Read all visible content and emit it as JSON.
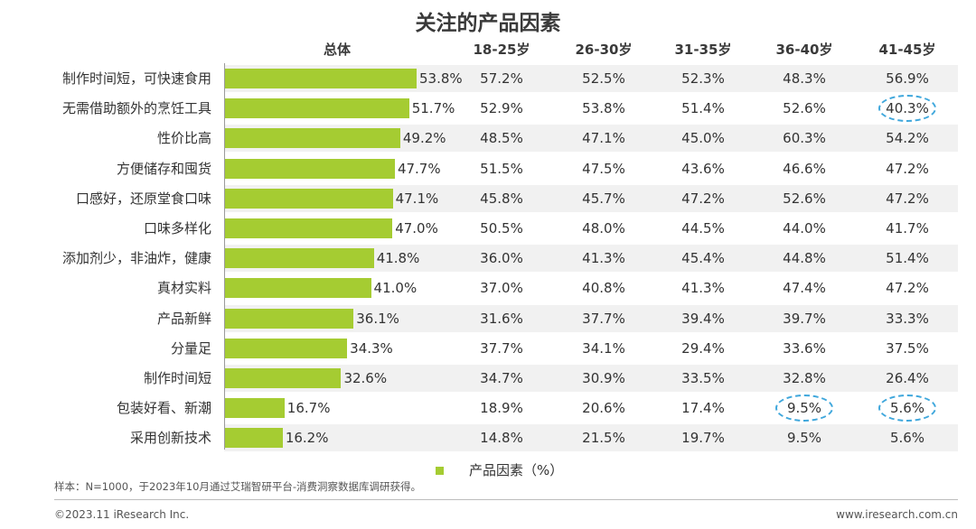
{
  "chart_data": {
    "type": "table",
    "title": "关注的产品因素",
    "columns": [
      "总体",
      "18-25岁",
      "26-30岁",
      "31-35岁",
      "36-40岁",
      "41-45岁"
    ],
    "categories": [
      "制作时间短，可快速食用",
      "无需借助额外的烹饪工具",
      "性价比高",
      "方便储存和囤货",
      "口感好，还原堂食口味",
      "口味多样化",
      "添加剂少，非油炸，健康",
      "真材实料",
      "产品新鲜",
      "分量足",
      "制作时间短",
      "包装好看、新潮",
      "采用创新技术"
    ],
    "series": [
      {
        "name": "总体",
        "values": [
          53.8,
          51.7,
          49.2,
          47.7,
          47.1,
          47.0,
          41.8,
          41.0,
          36.1,
          34.3,
          32.6,
          16.7,
          16.2
        ],
        "labels": [
          "53.8%",
          "51.7%",
          "49.2%",
          "47.7%",
          "47.1%",
          "47.0%",
          "41.8%",
          "41.0%",
          "36.1%",
          "34.3%",
          "32.6%",
          "16.7%",
          "16.2%"
        ]
      },
      {
        "name": "18-25岁",
        "values": [
          "57.2%",
          "52.9%",
          "48.5%",
          "51.5%",
          "45.8%",
          "50.5%",
          "36.0%",
          "37.0%",
          "31.6%",
          "37.7%",
          "34.7%",
          "18.9%",
          "14.8%"
        ]
      },
      {
        "name": "26-30岁",
        "values": [
          "52.5%",
          "53.8%",
          "47.1%",
          "47.5%",
          "45.7%",
          "48.0%",
          "41.3%",
          "40.8%",
          "37.7%",
          "34.1%",
          "30.9%",
          "20.6%",
          "21.5%"
        ]
      },
      {
        "name": "31-35岁",
        "values": [
          "52.3%",
          "51.4%",
          "45.0%",
          "43.6%",
          "47.2%",
          "44.5%",
          "45.4%",
          "41.3%",
          "39.4%",
          "29.4%",
          "33.5%",
          "17.4%",
          "19.7%"
        ]
      },
      {
        "name": "36-40岁",
        "values": [
          "48.3%",
          "52.6%",
          "60.3%",
          "46.6%",
          "52.6%",
          "44.0%",
          "44.8%",
          "47.4%",
          "39.7%",
          "33.6%",
          "32.8%",
          "9.5%",
          "9.5%"
        ]
      },
      {
        "name": "41-45岁",
        "values": [
          "56.9%",
          "40.3%",
          "54.2%",
          "47.2%",
          "47.2%",
          "41.7%",
          "51.4%",
          "47.2%",
          "33.3%",
          "37.5%",
          "26.4%",
          "5.6%",
          "5.6%"
        ]
      }
    ],
    "highlights": [
      {
        "column": 5,
        "row": 1
      },
      {
        "column": 4,
        "row": 11
      },
      {
        "column": 5,
        "row": 11
      }
    ],
    "legend": "产品因素（%）",
    "bar_color": "#a5cc32",
    "highlight_color": "#3fa7dc"
  },
  "footer": {
    "note": "样本：N=1000，于2023年10月通过艾瑞智研平台-消费洞察数据库调研获得。",
    "copyright": "©2023.11 iResearch Inc.",
    "website": "www.iresearch.com.cn"
  }
}
